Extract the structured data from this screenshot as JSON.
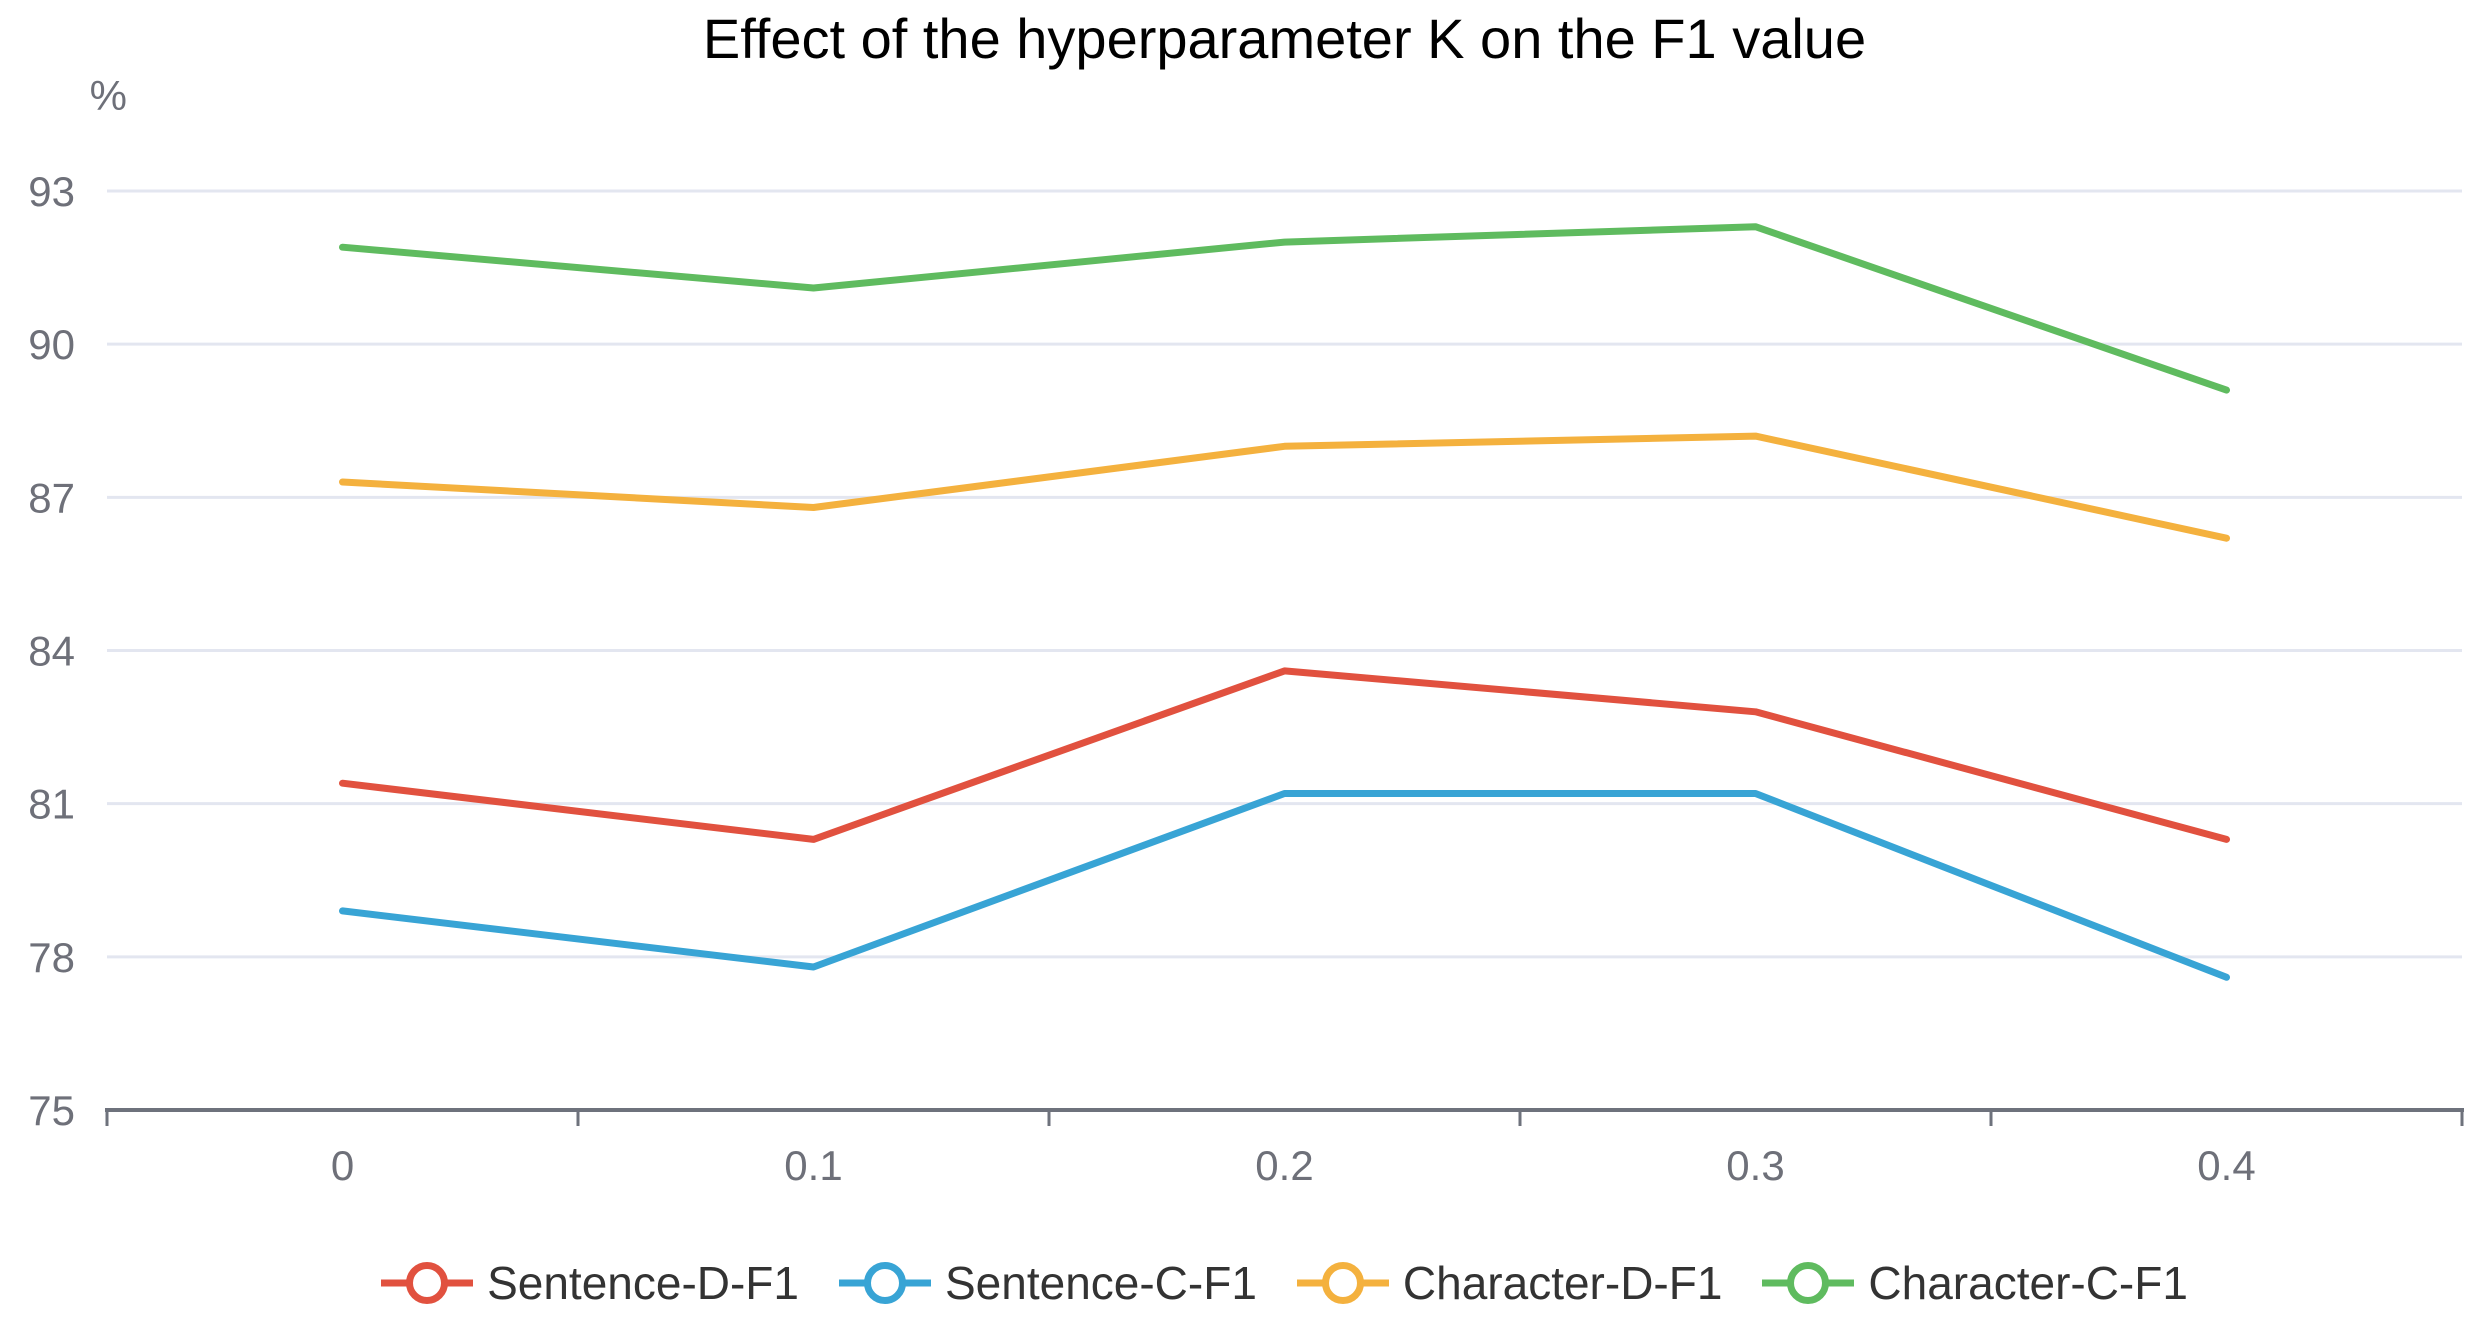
{
  "chart_data": {
    "type": "line",
    "title": "Effect of the hyperparameter K on the F1 value",
    "ylabel": "%",
    "xlabel": "",
    "categories": [
      "0",
      "0.1",
      "0.2",
      "0.3",
      "0.4"
    ],
    "x_values": [
      0,
      0.1,
      0.2,
      0.3,
      0.4
    ],
    "ylim": [
      75,
      93
    ],
    "yticks": [
      75,
      78,
      81,
      84,
      87,
      90,
      93
    ],
    "grid": true,
    "legend_position": "bottom",
    "series": [
      {
        "name": "Sentence-D-F1",
        "color": "#E1513F",
        "values": [
          81.4,
          80.3,
          83.6,
          82.8,
          80.3
        ]
      },
      {
        "name": "Sentence-C-F1",
        "color": "#38A4D5",
        "values": [
          78.9,
          77.8,
          81.2,
          81.2,
          77.6
        ]
      },
      {
        "name": "Character-D-F1",
        "color": "#F4B13E",
        "values": [
          87.3,
          86.8,
          88.0,
          88.2,
          86.2
        ]
      },
      {
        "name": "Character-C-F1",
        "color": "#5FBB5F",
        "values": [
          91.9,
          91.1,
          92.0,
          92.3,
          89.1
        ]
      }
    ]
  },
  "style": {
    "grid_color": "#E3E6F0",
    "axis_line_color": "#6E727C",
    "axis_label_color": "#6E7079",
    "legend_text_color": "#333333",
    "title_color": "#000000"
  }
}
